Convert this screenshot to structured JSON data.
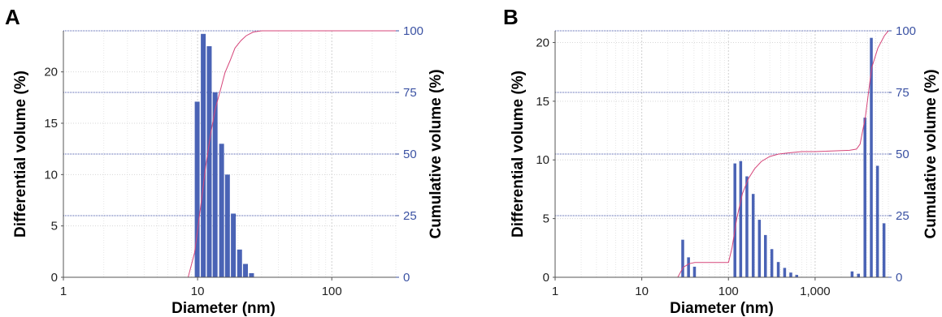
{
  "chart_data": [
    {
      "panel_label": "A",
      "type": "bar",
      "xlabel": "Diameter (nm)",
      "ylabel": "Differential volume (%)",
      "y2label": "Cumulative volume (%)",
      "x_scale": "log",
      "xlim": [
        1,
        300
      ],
      "ylim": [
        0,
        24
      ],
      "y2lim": [
        0,
        100
      ],
      "x_ticks": [
        1,
        10,
        100
      ],
      "x_tick_labels": [
        "1",
        "10",
        "100"
      ],
      "y_ticks": [
        0,
        5,
        10,
        15,
        20
      ],
      "y2_ticks": [
        0,
        25,
        50,
        75,
        100
      ],
      "grid": true,
      "colors": {
        "bars": "#4a63b5",
        "cumulative": "#d6467a",
        "right_axis": "#3b52a3"
      },
      "bars": [
        {
          "x": 10.0,
          "value": 17.1
        },
        {
          "x": 11.1,
          "value": 23.7
        },
        {
          "x": 12.3,
          "value": 22.5
        },
        {
          "x": 13.6,
          "value": 18.0
        },
        {
          "x": 15.2,
          "value": 13.0
        },
        {
          "x": 16.8,
          "value": 10.0
        },
        {
          "x": 18.6,
          "value": 6.2
        },
        {
          "x": 20.7,
          "value": 2.7
        },
        {
          "x": 22.9,
          "value": 1.3
        },
        {
          "x": 25.4,
          "value": 0.4
        }
      ],
      "cumulative": {
        "x": [
          8.5,
          9.5,
          10.5,
          11.5,
          12.5,
          13.5,
          14.8,
          16.0,
          17.5,
          19.0,
          21.0,
          23.0,
          26.0,
          30.0,
          300
        ],
        "y": [
          0,
          10,
          28,
          45,
          58,
          68,
          76,
          83,
          88,
          93,
          96,
          98,
          99.5,
          100,
          100
        ]
      }
    },
    {
      "panel_label": "B",
      "type": "bar",
      "xlabel": "Diameter (nm)",
      "ylabel": "Differential volume (%)",
      "y2label": "Cumulative volume (%)",
      "x_scale": "log",
      "xlim": [
        1,
        7000
      ],
      "ylim": [
        0,
        21
      ],
      "y2lim": [
        0,
        100
      ],
      "x_ticks": [
        1,
        10,
        100,
        1000
      ],
      "x_tick_labels": [
        "1",
        "10",
        "100",
        "1,000"
      ],
      "y_ticks": [
        0,
        5,
        10,
        15,
        20
      ],
      "y2_ticks": [
        0,
        25,
        50,
        75,
        100
      ],
      "grid": true,
      "colors": {
        "bars": "#4a63b5",
        "cumulative": "#d6467a",
        "right_axis": "#3b52a3"
      },
      "bars": [
        {
          "x": 30,
          "value": 3.2
        },
        {
          "x": 35,
          "value": 1.7
        },
        {
          "x": 41,
          "value": 0.9
        },
        {
          "x": 120,
          "value": 9.7
        },
        {
          "x": 140,
          "value": 9.9
        },
        {
          "x": 165,
          "value": 8.6
        },
        {
          "x": 195,
          "value": 7.1
        },
        {
          "x": 230,
          "value": 4.9
        },
        {
          "x": 270,
          "value": 3.6
        },
        {
          "x": 320,
          "value": 2.4
        },
        {
          "x": 380,
          "value": 1.3
        },
        {
          "x": 450,
          "value": 0.8
        },
        {
          "x": 530,
          "value": 0.4
        },
        {
          "x": 620,
          "value": 0.2
        },
        {
          "x": 2700,
          "value": 0.5
        },
        {
          "x": 3200,
          "value": 0.3
        },
        {
          "x": 3800,
          "value": 13.6
        },
        {
          "x": 4500,
          "value": 20.4
        },
        {
          "x": 5300,
          "value": 9.5
        },
        {
          "x": 6300,
          "value": 4.6
        }
      ],
      "cumulative": {
        "x": [
          1,
          26,
          30,
          35,
          41,
          100,
          110,
          125,
          145,
          170,
          200,
          240,
          300,
          380,
          500,
          700,
          1000,
          2500,
          3000,
          3300,
          3800,
          4500,
          5300,
          6300,
          7000
        ],
        "y": [
          0,
          0,
          4,
          5.5,
          6,
          6,
          12,
          24,
          34,
          40,
          44,
          47,
          49,
          50,
          50.5,
          51,
          51,
          51.5,
          52,
          54,
          65,
          85,
          93,
          98,
          100
        ]
      }
    }
  ]
}
